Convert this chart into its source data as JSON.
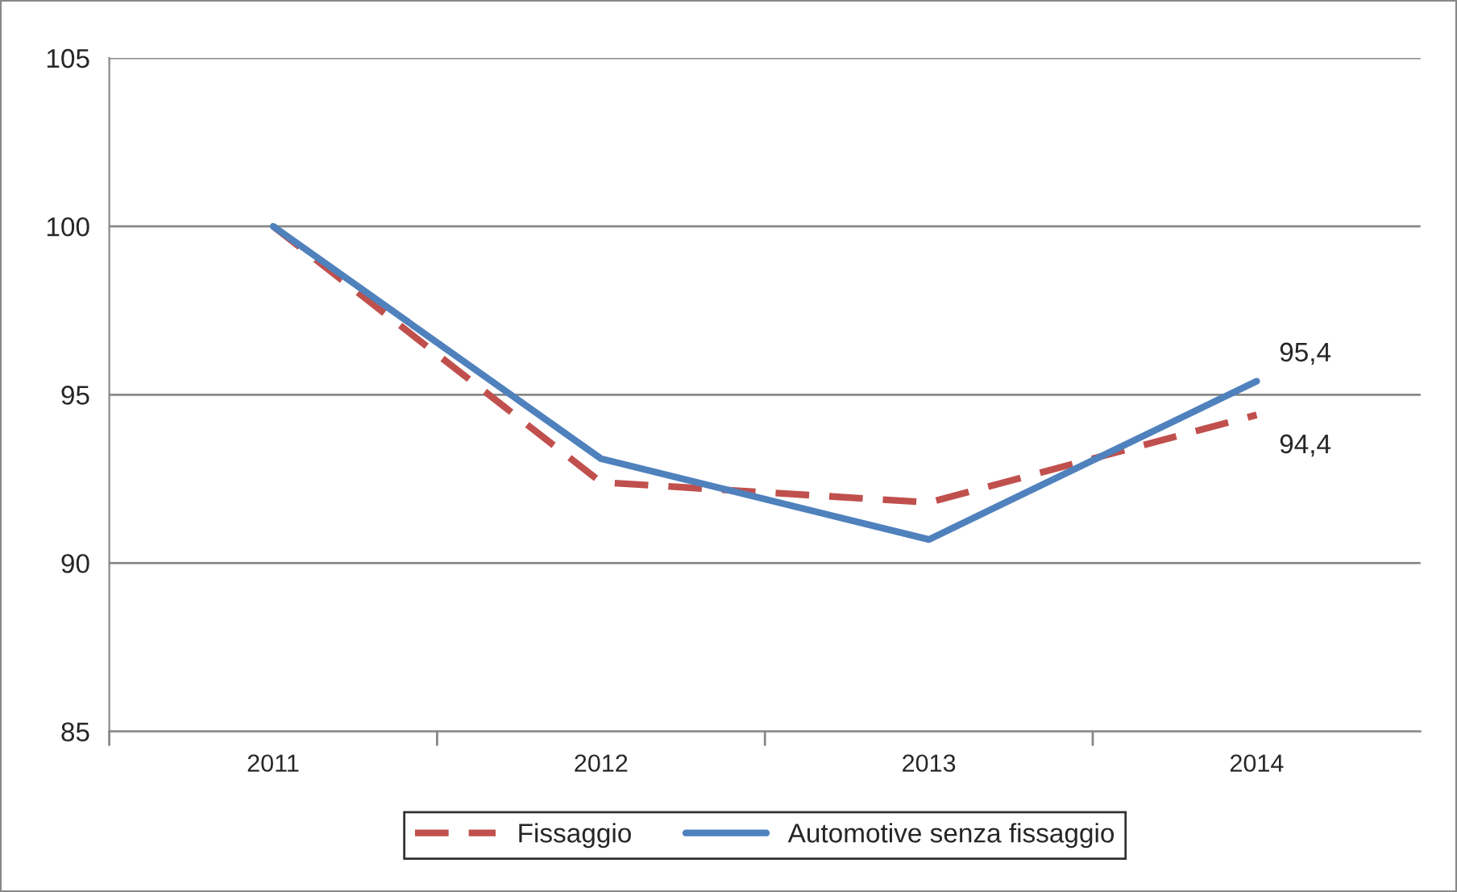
{
  "chart_data": {
    "type": "line",
    "categories": [
      "2011",
      "2012",
      "2013",
      "2014"
    ],
    "series": [
      {
        "name": "Fissaggio",
        "color": "#c0504d",
        "line_style": "dashed",
        "values": [
          100,
          92.4,
          91.8,
          94.4
        ],
        "value_labels": [
          null,
          null,
          null,
          "94,4"
        ]
      },
      {
        "name": "Automotive senza fissaggio",
        "color": "#4f81bd",
        "line_style": "solid",
        "values": [
          100,
          93.1,
          90.7,
          95.4
        ],
        "value_labels": [
          null,
          null,
          null,
          "95,4"
        ]
      }
    ],
    "ylim": [
      85,
      105
    ],
    "yticks": [
      85,
      90,
      95,
      100,
      105
    ],
    "grid": "y",
    "legend": "bottom",
    "marker": "none"
  }
}
